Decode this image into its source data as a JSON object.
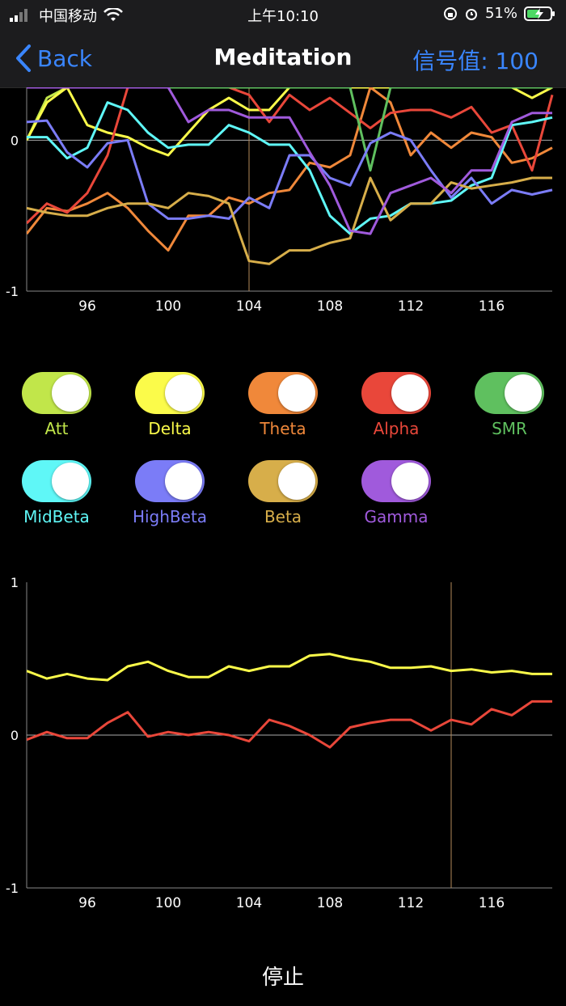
{
  "status_bar": {
    "carrier": "中国移动",
    "time": "上午10:10",
    "battery": "51%"
  },
  "nav": {
    "back_label": "Back",
    "title": "Meditation",
    "signal": "信号值: 100"
  },
  "toggles": [
    {
      "label": "Att",
      "color": "#c1e64a",
      "on": true
    },
    {
      "label": "Delta",
      "color": "#fbfb4a",
      "on": true
    },
    {
      "label": "Theta",
      "color": "#f0883a",
      "on": true
    },
    {
      "label": "Alpha",
      "color": "#e9473a",
      "on": true
    },
    {
      "label": "SMR",
      "color": "#5fc05f",
      "on": true
    },
    {
      "label": "MidBeta",
      "color": "#5ff7f7",
      "on": true
    },
    {
      "label": "HighBeta",
      "color": "#7b7cf7",
      "on": true
    },
    {
      "label": "Beta",
      "color": "#d7ae4a",
      "on": true
    },
    {
      "label": "Gamma",
      "color": "#a05adc",
      "on": true
    }
  ],
  "stop_label": "停止",
  "chart_data": [
    {
      "type": "line",
      "x": [
        93,
        94,
        95,
        96,
        97,
        98,
        99,
        100,
        101,
        102,
        103,
        104,
        105,
        106,
        107,
        108,
        109,
        110,
        111,
        112,
        113,
        114,
        115,
        116,
        117,
        118,
        119
      ],
      "xticks": [
        96,
        100,
        104,
        108,
        112,
        116
      ],
      "ylim": [
        -1,
        0.35
      ],
      "yticks": [
        0,
        -1
      ],
      "cursor_x": 104,
      "series": [
        {
          "color": "#c1e64a",
          "values": [
            0.0,
            0.28,
            0.35,
            0.35,
            0.35,
            0.35,
            0.35,
            0.35,
            0.35,
            0.35,
            0.35,
            0.35,
            0.35,
            0.35,
            0.35,
            0.35,
            0.35,
            0.35,
            0.35,
            0.35,
            0.35,
            0.35,
            0.35,
            0.35,
            0.35,
            0.35,
            0.35
          ]
        },
        {
          "color": "#fbfb4a",
          "values": [
            0.0,
            0.25,
            0.35,
            0.1,
            0.05,
            0.02,
            -0.05,
            -0.1,
            0.05,
            0.2,
            0.28,
            0.2,
            0.2,
            0.35,
            0.35,
            0.35,
            0.35,
            0.35,
            0.35,
            0.35,
            0.35,
            0.35,
            0.35,
            0.35,
            0.35,
            0.28,
            0.35
          ]
        },
        {
          "color": "#f0883a",
          "values": [
            -0.62,
            -0.45,
            -0.47,
            -0.42,
            -0.35,
            -0.45,
            -0.6,
            -0.73,
            -0.5,
            -0.5,
            -0.38,
            -0.42,
            -0.35,
            -0.33,
            -0.15,
            -0.18,
            -0.1,
            0.35,
            0.25,
            -0.1,
            0.05,
            -0.05,
            0.05,
            0.02,
            -0.15,
            -0.12,
            -0.05
          ]
        },
        {
          "color": "#e9473a",
          "values": [
            -0.55,
            -0.42,
            -0.48,
            -0.35,
            -0.1,
            0.35,
            0.35,
            0.35,
            0.35,
            0.35,
            0.35,
            0.3,
            0.12,
            0.3,
            0.2,
            0.28,
            0.18,
            0.08,
            0.18,
            0.2,
            0.2,
            0.15,
            0.22,
            0.05,
            0.1,
            -0.2,
            0.3
          ]
        },
        {
          "color": "#5fc05f",
          "values": [
            0.35,
            0.35,
            0.35,
            0.35,
            0.35,
            0.35,
            0.35,
            0.35,
            0.35,
            0.35,
            0.35,
            0.35,
            0.35,
            0.35,
            0.35,
            0.35,
            0.35,
            -0.2,
            0.35,
            0.35,
            0.35,
            0.35,
            0.35,
            0.35,
            0.35,
            0.35,
            0.35
          ]
        },
        {
          "color": "#5ff7f7",
          "values": [
            0.02,
            0.02,
            -0.12,
            -0.05,
            0.25,
            0.2,
            0.05,
            -0.05,
            -0.03,
            -0.03,
            0.1,
            0.05,
            -0.03,
            -0.03,
            -0.2,
            -0.5,
            -0.62,
            -0.52,
            -0.5,
            -0.42,
            -0.42,
            -0.4,
            -0.3,
            -0.25,
            0.1,
            0.12,
            0.15
          ]
        },
        {
          "color": "#7b7cf7",
          "values": [
            0.12,
            0.13,
            -0.08,
            -0.18,
            -0.02,
            0.0,
            -0.42,
            -0.52,
            -0.52,
            -0.5,
            -0.52,
            -0.38,
            -0.45,
            -0.1,
            -0.1,
            -0.25,
            -0.3,
            -0.02,
            0.05,
            0.0,
            -0.2,
            -0.38,
            -0.25,
            -0.42,
            -0.33,
            -0.36,
            -0.33
          ]
        },
        {
          "color": "#d7ae4a",
          "values": [
            -0.45,
            -0.48,
            -0.5,
            -0.5,
            -0.45,
            -0.42,
            -0.42,
            -0.45,
            -0.35,
            -0.37,
            -0.42,
            -0.8,
            -0.82,
            -0.73,
            -0.73,
            -0.68,
            -0.65,
            -0.25,
            -0.53,
            -0.42,
            -0.42,
            -0.28,
            -0.32,
            -0.3,
            -0.28,
            -0.25,
            -0.25
          ]
        },
        {
          "color": "#a05adc",
          "values": [
            0.35,
            0.35,
            0.35,
            0.35,
            0.35,
            0.35,
            0.35,
            0.35,
            0.12,
            0.2,
            0.2,
            0.15,
            0.15,
            0.15,
            -0.08,
            -0.3,
            -0.6,
            -0.62,
            -0.35,
            -0.3,
            -0.25,
            -0.35,
            -0.2,
            -0.2,
            0.12,
            0.18,
            0.18
          ]
        }
      ]
    },
    {
      "type": "line",
      "x": [
        93,
        94,
        95,
        96,
        97,
        98,
        99,
        100,
        101,
        102,
        103,
        104,
        105,
        106,
        107,
        108,
        109,
        110,
        111,
        112,
        113,
        114,
        115,
        116,
        117,
        118,
        119
      ],
      "xticks": [
        96,
        100,
        104,
        108,
        112,
        116
      ],
      "ylim": [
        -1,
        1
      ],
      "yticks": [
        1,
        0,
        -1
      ],
      "cursor_x": 114,
      "series": [
        {
          "color": "#fbfb4a",
          "values": [
            0.42,
            0.37,
            0.4,
            0.37,
            0.36,
            0.45,
            0.48,
            0.42,
            0.38,
            0.38,
            0.45,
            0.42,
            0.45,
            0.45,
            0.52,
            0.53,
            0.5,
            0.48,
            0.44,
            0.44,
            0.45,
            0.42,
            0.43,
            0.41,
            0.42,
            0.4,
            0.4
          ]
        },
        {
          "color": "#e9473a",
          "values": [
            -0.03,
            0.02,
            -0.02,
            -0.02,
            0.08,
            0.15,
            -0.01,
            0.02,
            0.0,
            0.02,
            0.0,
            -0.04,
            0.1,
            0.06,
            0.0,
            -0.08,
            0.05,
            0.08,
            0.1,
            0.1,
            0.03,
            0.1,
            0.07,
            0.17,
            0.13,
            0.22,
            0.22
          ]
        }
      ]
    }
  ]
}
